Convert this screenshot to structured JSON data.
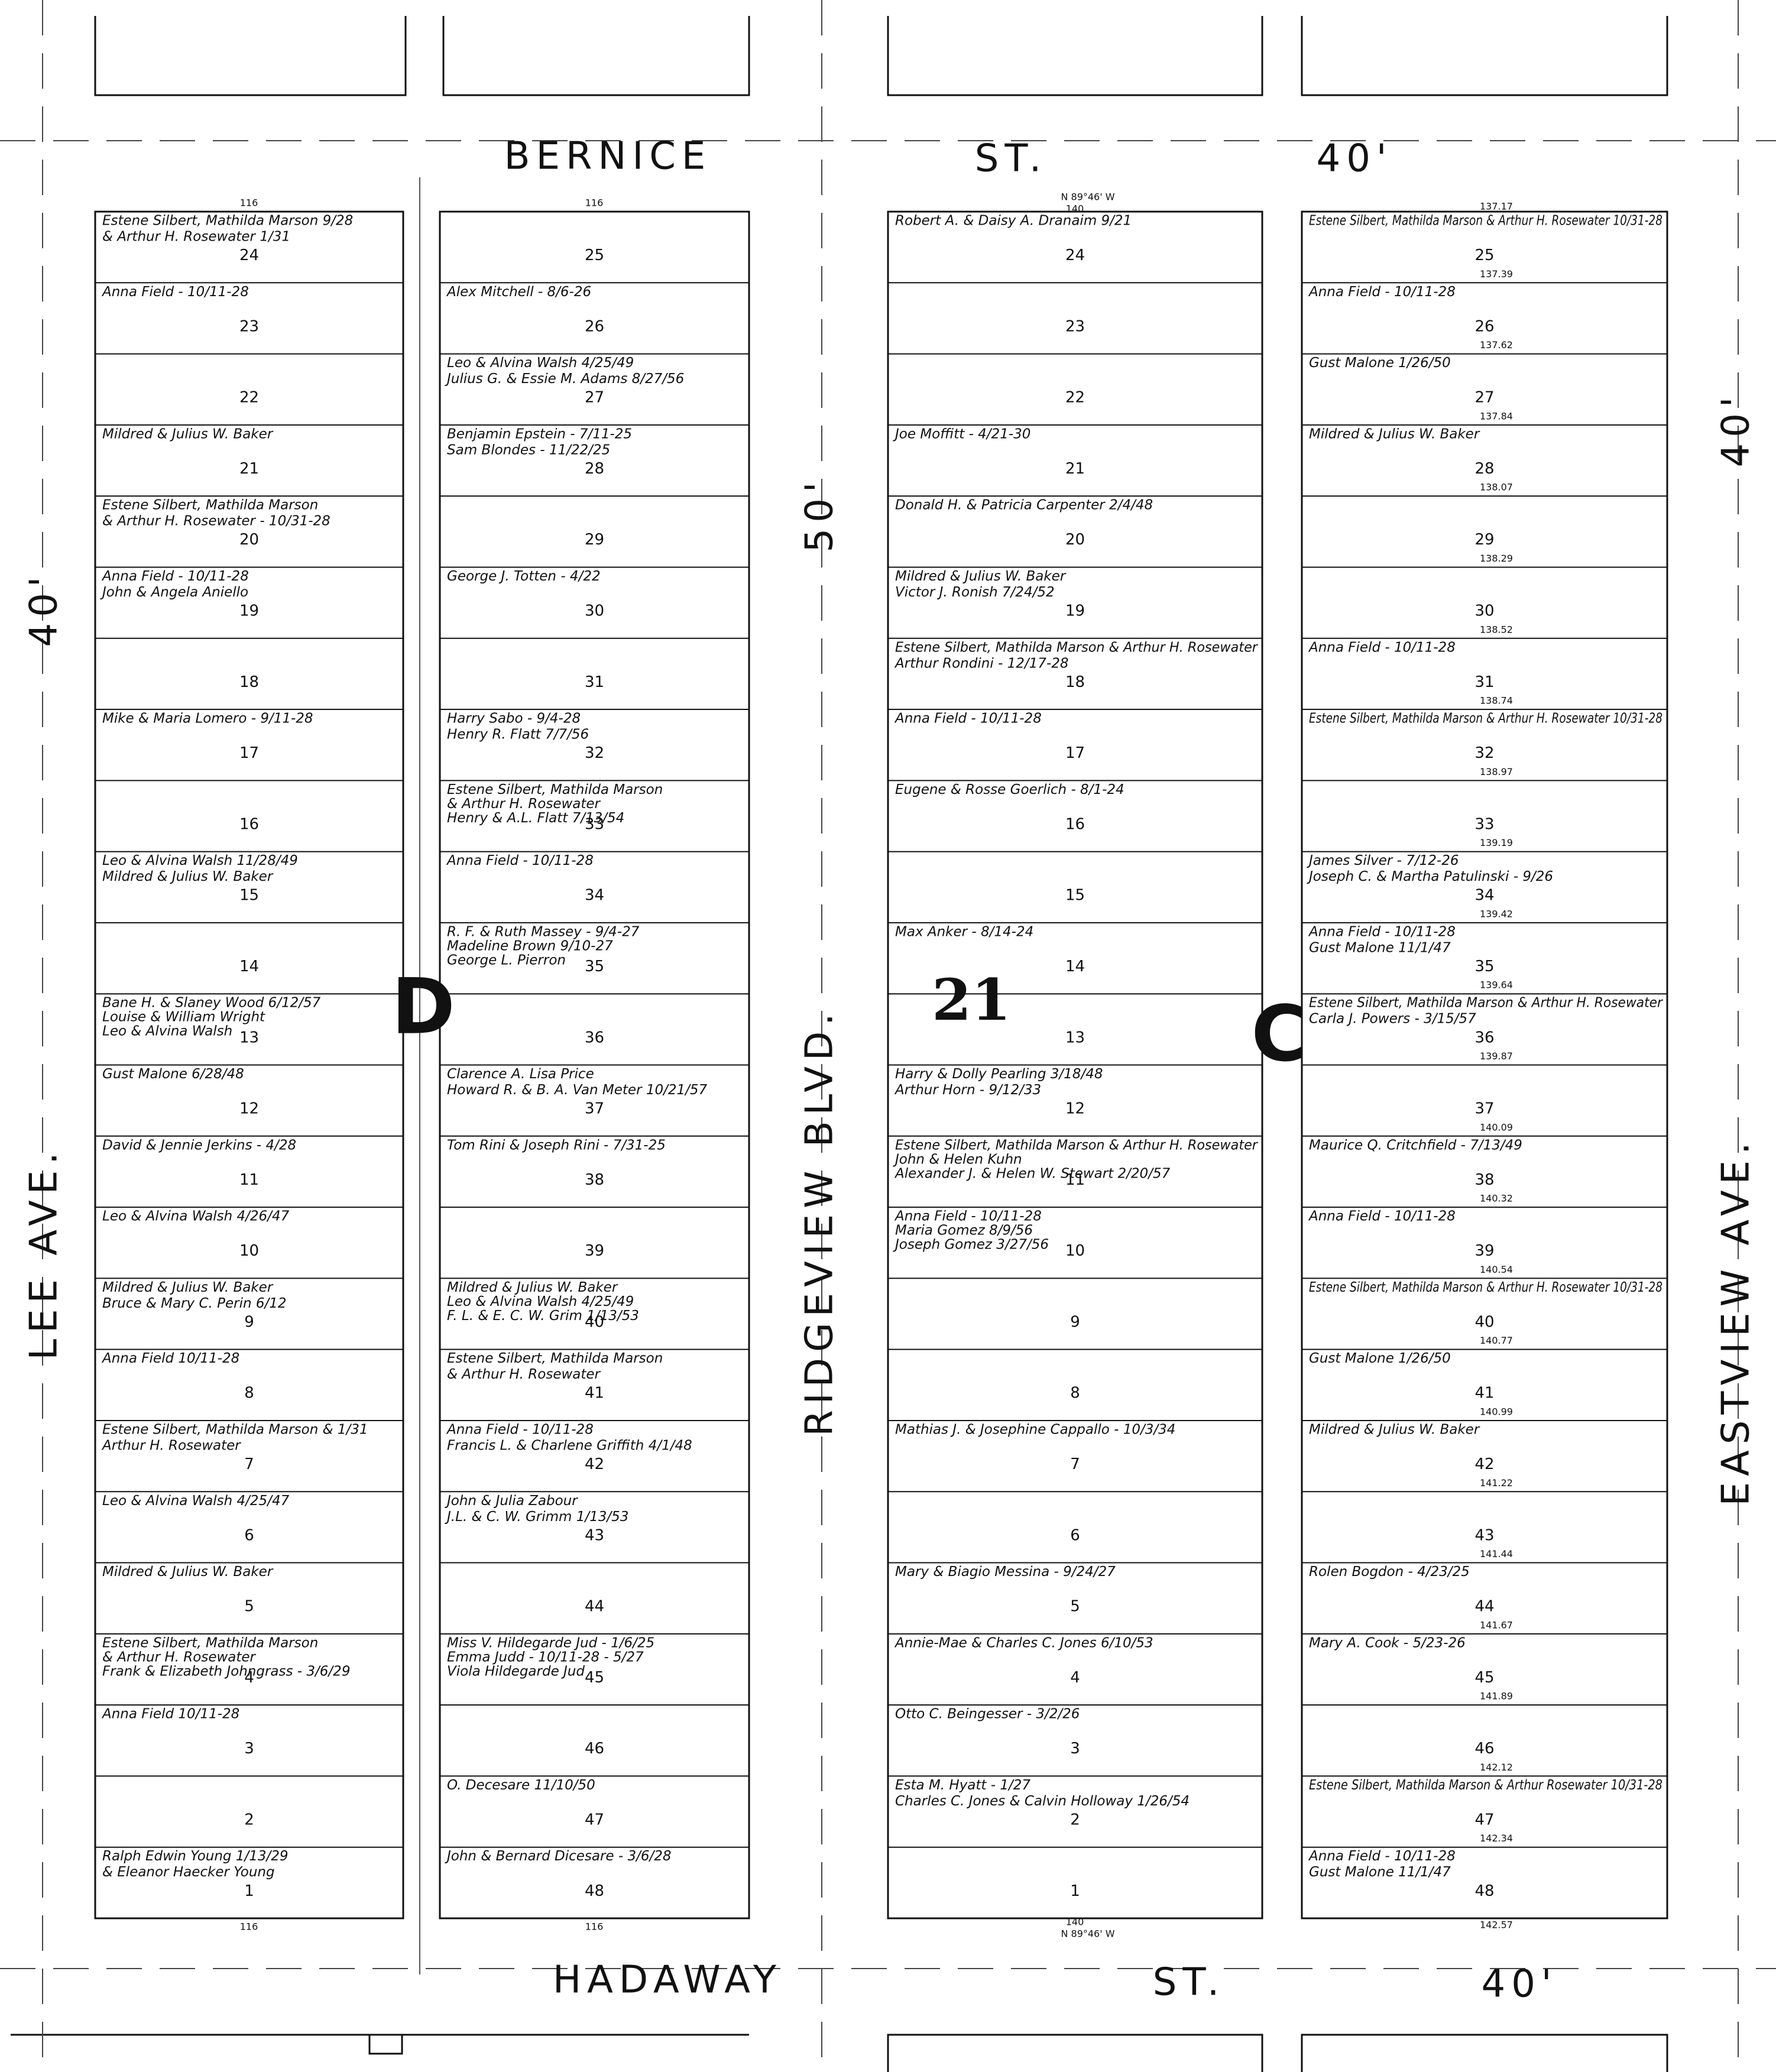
{
  "streets": {
    "top": {
      "name": "BERNICE",
      "suffix": "ST.",
      "width": "40'"
    },
    "bottom": {
      "name": "HADAWAY",
      "suffix": "ST.",
      "width": "40'"
    },
    "left": {
      "name": "LEE AVE.",
      "width": "40'"
    },
    "middle": {
      "name": "RIDGEVIEW BLVD.",
      "width": "50'"
    },
    "right": {
      "name": "EASTVIEW AVE.",
      "width": "40'"
    }
  },
  "blocks": {
    "west": "D",
    "east": "C",
    "number": "21"
  },
  "dimensions": {
    "d_width": "116",
    "c_width": "140",
    "c_bearing": "N 89°46' W"
  },
  "columns": [
    {
      "lots": [
        {
          "number": "24",
          "notes": [
            "Estene Silbert, Mathilda Marson 9/28",
            "& Arthur H. Rosewater 1/31"
          ]
        },
        {
          "number": "23",
          "notes": [
            "Anna Field - 10/11-28"
          ]
        },
        {
          "number": "22",
          "notes": []
        },
        {
          "number": "21",
          "notes": [
            "Mildred & Julius W. Baker"
          ]
        },
        {
          "number": "20",
          "notes": [
            "Estene Silbert, Mathilda Marson",
            "& Arthur H. Rosewater - 10/31-28"
          ]
        },
        {
          "number": "19",
          "notes": [
            "Anna Field - 10/11-28",
            "John & Angela Aniello"
          ]
        },
        {
          "number": "18",
          "notes": []
        },
        {
          "number": "17",
          "notes": [
            "Mike & Maria Lomero - 9/11-28"
          ]
        },
        {
          "number": "16",
          "notes": []
        },
        {
          "number": "15",
          "notes": [
            "Leo & Alvina Walsh 11/28/49",
            "Mildred & Julius W. Baker"
          ]
        },
        {
          "number": "14",
          "notes": []
        },
        {
          "number": "13",
          "notes": [
            "Bane H. & Slaney Wood 6/12/57",
            "Louise & William Wright",
            "Leo & Alvina Walsh"
          ]
        },
        {
          "number": "12",
          "notes": [
            "Gust Malone 6/28/48"
          ]
        },
        {
          "number": "11",
          "notes": [
            "David & Jennie Jerkins - 4/28"
          ]
        },
        {
          "number": "10",
          "notes": [
            "Leo & Alvina Walsh 4/26/47"
          ]
        },
        {
          "number": "9",
          "notes": [
            "Mildred & Julius W. Baker",
            "Bruce & Mary C. Perin 6/12"
          ]
        },
        {
          "number": "8",
          "notes": [
            "Anna Field 10/11-28"
          ]
        },
        {
          "number": "7",
          "notes": [
            "Estene Silbert, Mathilda Marson & 1/31",
            "Arthur H. Rosewater"
          ]
        },
        {
          "number": "6",
          "notes": [
            "Leo & Alvina Walsh 4/25/47"
          ]
        },
        {
          "number": "5",
          "notes": [
            "Mildred & Julius W. Baker"
          ]
        },
        {
          "number": "4",
          "notes": [
            "Estene Silbert, Mathilda Marson",
            "& Arthur H. Rosewater",
            "Frank & Elizabeth Johngrass - 3/6/29"
          ]
        },
        {
          "number": "3",
          "notes": [
            "Anna Field 10/11-28"
          ]
        },
        {
          "number": "2",
          "notes": []
        },
        {
          "number": "1",
          "notes": [
            "Ralph Edwin Young 1/13/29",
            "& Eleanor Haecker Young"
          ]
        }
      ]
    },
    {
      "lots": [
        {
          "number": "25",
          "notes": []
        },
        {
          "number": "26",
          "notes": [
            "Alex Mitchell - 8/6-26"
          ]
        },
        {
          "number": "27",
          "notes": [
            "Leo & Alvina Walsh 4/25/49",
            "Julius G. & Essie M. Adams 8/27/56"
          ]
        },
        {
          "number": "28",
          "notes": [
            "Benjamin Epstein - 7/11-25",
            "Sam Blondes - 11/22/25"
          ]
        },
        {
          "number": "29",
          "notes": []
        },
        {
          "number": "30",
          "notes": [
            "George J. Totten - 4/22"
          ]
        },
        {
          "number": "31",
          "notes": []
        },
        {
          "number": "32",
          "notes": [
            "Harry Sabo - 9/4-28",
            "Henry R. Flatt 7/7/56"
          ]
        },
        {
          "number": "33",
          "notes": [
            "Estene Silbert, Mathilda Marson",
            "& Arthur H. Rosewater",
            "Henry & A.L. Flatt 7/13/54"
          ]
        },
        {
          "number": "34",
          "notes": [
            "Anna Field - 10/11-28"
          ]
        },
        {
          "number": "35",
          "notes": [
            "R. F. & Ruth Massey - 9/4-27",
            "Madeline Brown 9/10-27",
            "George L. Pierron"
          ]
        },
        {
          "number": "36",
          "notes": []
        },
        {
          "number": "37",
          "notes": [
            "Clarence A. Lisa Price",
            "Howard R. & B. A. Van Meter 10/21/57"
          ]
        },
        {
          "number": "38",
          "notes": [
            "Tom Rini & Joseph Rini - 7/31-25"
          ]
        },
        {
          "number": "39",
          "notes": []
        },
        {
          "number": "40",
          "notes": [
            "Mildred & Julius W. Baker",
            "Leo & Alvina Walsh 4/25/49",
            "F. L. & E. C. W. Grim 1/13/53"
          ]
        },
        {
          "number": "41",
          "notes": [
            "Estene Silbert, Mathilda Marson",
            "& Arthur H. Rosewater"
          ]
        },
        {
          "number": "42",
          "notes": [
            "Anna Field - 10/11-28",
            "Francis L. & Charlene Griffith 4/1/48"
          ]
        },
        {
          "number": "43",
          "notes": [
            "John & Julia Zabour",
            "J.L. & C. W. Grimm 1/13/53"
          ]
        },
        {
          "number": "44",
          "notes": []
        },
        {
          "number": "45",
          "notes": [
            "Miss V. Hildegarde Jud - 1/6/25",
            "Emma Judd - 10/11-28 - 5/27",
            "Viola Hildegarde Jud"
          ]
        },
        {
          "number": "46",
          "notes": []
        },
        {
          "number": "47",
          "notes": [
            "O. Decesare 11/10/50"
          ]
        },
        {
          "number": "48",
          "notes": [
            "John & Bernard Dicesare - 3/6/28"
          ]
        }
      ]
    },
    {
      "lots": [
        {
          "number": "24",
          "notes": [
            "Robert A. & Daisy A. Dranaim 9/21"
          ]
        },
        {
          "number": "23",
          "notes": []
        },
        {
          "number": "22",
          "notes": []
        },
        {
          "number": "21",
          "notes": [
            "Joe Moffitt - 4/21-30"
          ]
        },
        {
          "number": "20",
          "notes": [
            "Donald H. & Patricia Carpenter 2/4/48"
          ]
        },
        {
          "number": "19",
          "notes": [
            "Mildred & Julius W. Baker",
            "Victor J. Ronish 7/24/52"
          ]
        },
        {
          "number": "18",
          "notes": [
            "Estene Silbert, Mathilda Marson & Arthur H. Rosewater",
            "Arthur Rondini - 12/17-28"
          ]
        },
        {
          "number": "17",
          "notes": [
            "Anna Field - 10/11-28"
          ]
        },
        {
          "number": "16",
          "notes": [
            "Eugene & Rosse Goerlich - 8/1-24"
          ]
        },
        {
          "number": "15",
          "notes": []
        },
        {
          "number": "14",
          "notes": [
            "Max Anker - 8/14-24"
          ]
        },
        {
          "number": "13",
          "notes": []
        },
        {
          "number": "12",
          "notes": [
            "Harry & Dolly Pearling 3/18/48",
            "Arthur Horn - 9/12/33"
          ]
        },
        {
          "number": "11",
          "notes": [
            "Estene Silbert, Mathilda Marson & Arthur H. Rosewater",
            "John & Helen Kuhn",
            "Alexander J. & Helen W. Stewart 2/20/57"
          ]
        },
        {
          "number": "10",
          "notes": [
            "Anna Field - 10/11-28",
            "Maria Gomez 8/9/56",
            "Joseph Gomez 3/27/56"
          ]
        },
        {
          "number": "9",
          "notes": []
        },
        {
          "number": "8",
          "notes": []
        },
        {
          "number": "7",
          "notes": [
            "Mathias J. & Josephine Cappallo - 10/3/34"
          ]
        },
        {
          "number": "6",
          "notes": []
        },
        {
          "number": "5",
          "notes": [
            "Mary & Biagio Messina - 9/24/27"
          ]
        },
        {
          "number": "4",
          "notes": [
            "Annie-Mae & Charles C. Jones 6/10/53"
          ]
        },
        {
          "number": "3",
          "notes": [
            "Otto C. Beingesser - 3/2/26"
          ]
        },
        {
          "number": "2",
          "notes": [
            "Esta M. Hyatt - 1/27",
            "Charles C. Jones & Calvin Holloway 1/26/54"
          ]
        },
        {
          "number": "1",
          "notes": []
        }
      ]
    },
    {
      "widths": [
        "137.17",
        "137.39",
        "137.62",
        "137.84",
        "138.07",
        "138.29",
        "138.52",
        "138.74",
        "138.97",
        "139.19",
        "139.42",
        "139.64",
        "139.87",
        "140.09",
        "140.32",
        "140.54",
        "140.77",
        "140.99",
        "141.22",
        "141.44",
        "141.67",
        "141.89",
        "142.12",
        "142.34",
        "142.57"
      ],
      "lots": [
        {
          "number": "25",
          "notes": [
            "Estene Silbert, Mathilda Marson & Arthur H. Rosewater 10/31-28"
          ]
        },
        {
          "number": "26",
          "notes": [
            "Anna Field - 10/11-28"
          ]
        },
        {
          "number": "27",
          "notes": [
            "Gust Malone 1/26/50"
          ]
        },
        {
          "number": "28",
          "notes": [
            "Mildred & Julius W. Baker"
          ]
        },
        {
          "number": "29",
          "notes": []
        },
        {
          "number": "30",
          "notes": []
        },
        {
          "number": "31",
          "notes": [
            "Anna Field - 10/11-28"
          ]
        },
        {
          "number": "32",
          "notes": [
            "Estene Silbert, Mathilda Marson & Arthur H. Rosewater 10/31-28"
          ]
        },
        {
          "number": "33",
          "notes": []
        },
        {
          "number": "34",
          "notes": [
            "James Silver - 7/12-26",
            "Joseph C. & Martha Patulinski - 9/26"
          ]
        },
        {
          "number": "35",
          "notes": [
            "Anna Field - 10/11-28",
            "Gust Malone 11/1/47"
          ]
        },
        {
          "number": "36",
          "notes": [
            "Estene Silbert, Mathilda Marson & Arthur H. Rosewater",
            "Carla J. Powers - 3/15/57"
          ]
        },
        {
          "number": "37",
          "notes": []
        },
        {
          "number": "38",
          "notes": [
            "Maurice Q. Critchfield - 7/13/49"
          ]
        },
        {
          "number": "39",
          "notes": [
            "Anna Field - 10/11-28"
          ]
        },
        {
          "number": "40",
          "notes": [
            "Estene Silbert, Mathilda Marson & Arthur H. Rosewater 10/31-28"
          ]
        },
        {
          "number": "41",
          "notes": [
            "Gust Malone 1/26/50"
          ]
        },
        {
          "number": "42",
          "notes": [
            "Mildred & Julius W. Baker"
          ]
        },
        {
          "number": "43",
          "notes": []
        },
        {
          "number": "44",
          "notes": [
            "Rolen Bogdon - 4/23/25"
          ]
        },
        {
          "number": "45",
          "notes": [
            "Mary A. Cook - 5/23-26"
          ]
        },
        {
          "number": "46",
          "notes": []
        },
        {
          "number": "47",
          "notes": [
            "Estene Silbert, Mathilda Marson & Arthur Rosewater 10/31-28"
          ]
        },
        {
          "number": "48",
          "notes": [
            "Anna Field - 10/11-28",
            "Gust Malone 11/1/47"
          ]
        }
      ]
    }
  ]
}
